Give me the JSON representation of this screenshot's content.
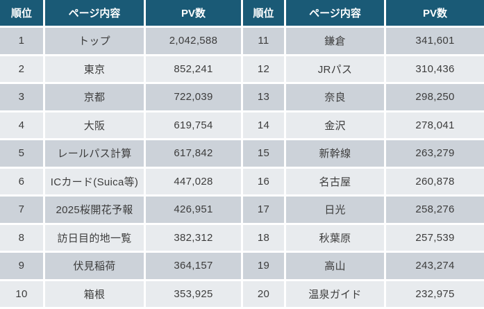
{
  "chart_data": {
    "type": "table",
    "columns": [
      "順位",
      "ページ内容",
      "PV数"
    ],
    "tables": [
      {
        "rows": [
          [
            "1",
            "トップ",
            "2,042,588"
          ],
          [
            "2",
            "東京",
            "852,241"
          ],
          [
            "3",
            "京都",
            "722,039"
          ],
          [
            "4",
            "大阪",
            "619,754"
          ],
          [
            "5",
            "レールパス計算",
            "617,842"
          ],
          [
            "6",
            "ICカード(Suica等)",
            "447,028"
          ],
          [
            "7",
            "2025桜開花予報",
            "426,951"
          ],
          [
            "8",
            "訪日目的地一覧",
            "382,312"
          ],
          [
            "9",
            "伏見稲荷",
            "364,157"
          ],
          [
            "10",
            "箱根",
            "353,925"
          ]
        ]
      },
      {
        "rows": [
          [
            "11",
            "鎌倉",
            "341,601"
          ],
          [
            "12",
            "JRパス",
            "310,436"
          ],
          [
            "13",
            "奈良",
            "298,250"
          ],
          [
            "14",
            "金沢",
            "278,041"
          ],
          [
            "15",
            "新幹線",
            "263,279"
          ],
          [
            "16",
            "名古屋",
            "260,878"
          ],
          [
            "17",
            "日光",
            "258,276"
          ],
          [
            "18",
            "秋葉原",
            "257,539"
          ],
          [
            "19",
            "高山",
            "243,274"
          ],
          [
            "20",
            "温泉ガイド",
            "232,975"
          ]
        ]
      }
    ]
  },
  "colors": {
    "header_bg": "#1a5a76",
    "header_text": "#ffffff",
    "row_odd": "#ccd2d9",
    "row_even": "#e8ebee",
    "body_text": "#3c3c3c",
    "grid": "#ffffff"
  }
}
